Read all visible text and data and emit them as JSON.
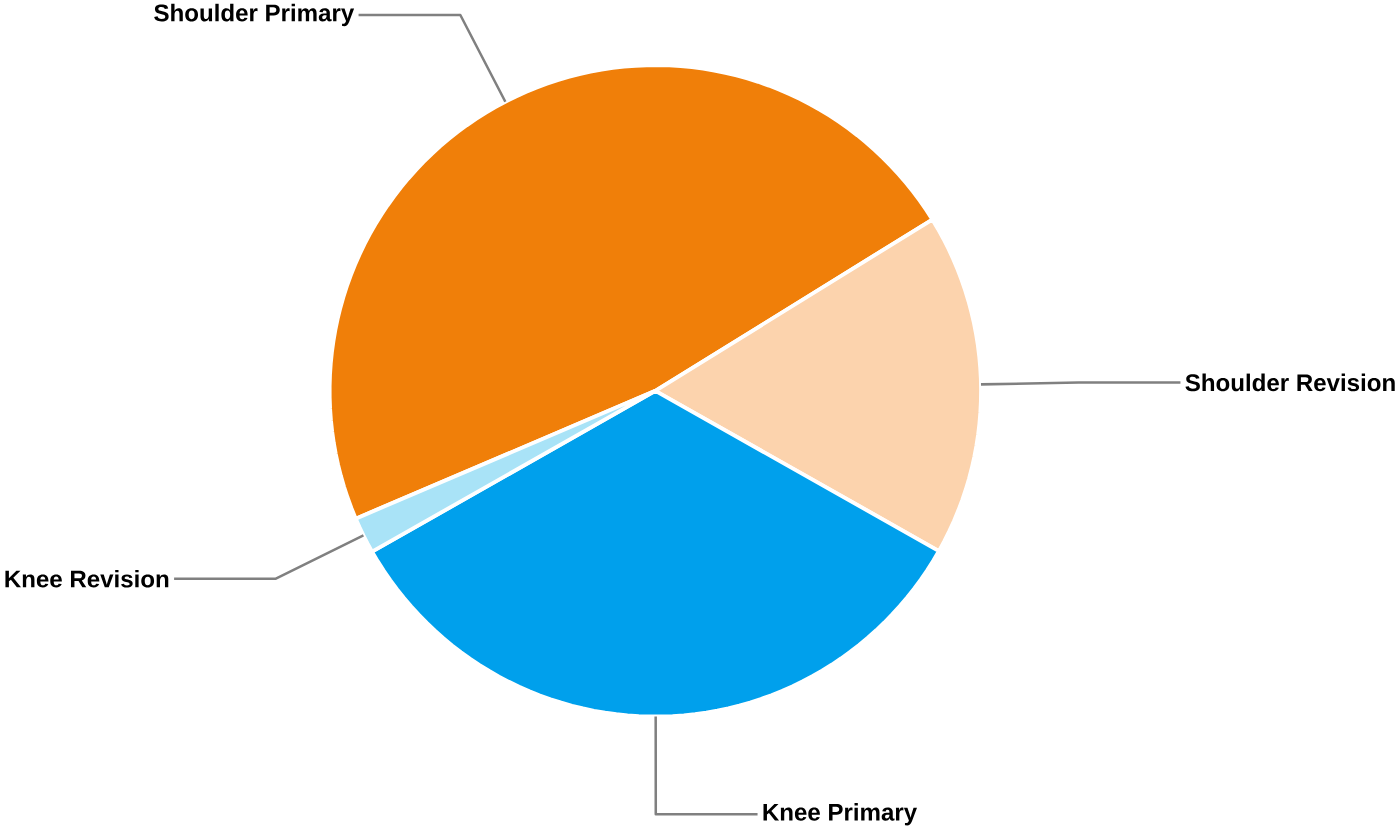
{
  "chart_data": {
    "type": "pie",
    "categories": [
      "Shoulder Primary",
      "Shoulder Revision",
      "Knee Primary",
      "Knee Revision"
    ],
    "values": [
      47.6,
      17.0,
      33.6,
      1.8
    ],
    "colors": [
      "#f07f09",
      "#fcd3ad",
      "#00a0ec",
      "#a9e3f7"
    ]
  }
}
